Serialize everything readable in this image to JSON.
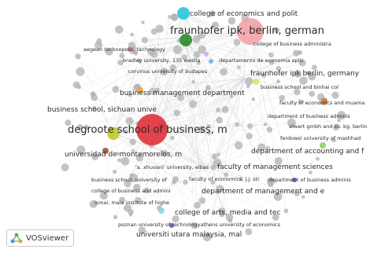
{
  "network": {
    "labels": [
      {
        "id": "college-economics-polit",
        "text": "college of economics and polit"
      },
      {
        "id": "fraunhofer-ipk-german",
        "text": "fraunhofer ipk, berlin, german"
      },
      {
        "id": "college-business-administra",
        "text": "college of business administra"
      },
      {
        "id": "aegean-technopolis",
        "text": "aegean technopolis, technology"
      },
      {
        "id": "bradley-university",
        "text": "bradley university, 135 westla"
      },
      {
        "id": "departamento-economia",
        "text": "departamento de economia aplic"
      },
      {
        "id": "corvinus-university",
        "text": "corvinus university of budapes"
      },
      {
        "id": "fraunhofer-ipk-germany",
        "text": "fraunhofer ipk berlin, germany"
      },
      {
        "id": "business-school-binhai",
        "text": "business school and binhai col"
      },
      {
        "id": "business-management-department",
        "text": "business management department"
      },
      {
        "id": "faculty-economics-muama",
        "text": "faculty of economics and muama"
      },
      {
        "id": "business-school-sichuan",
        "text": "business school, sichuan unive"
      },
      {
        "id": "department-business-adminis",
        "text": "department of business adminis"
      },
      {
        "id": "alwert-gmbh",
        "text": "alwert gmbh and co. kg, berlin"
      },
      {
        "id": "degroote-school",
        "text": "degroote school of business, m"
      },
      {
        "id": "ferdowsi-university",
        "text": "ferdowsi university of mashhad"
      },
      {
        "id": "department-accounting",
        "text": "department of accounting and f"
      },
      {
        "id": "universidad-montemorelos",
        "text": "universidad de montemorelos, m"
      },
      {
        "id": "xhuvani-university",
        "text": "'a. xhuvani' university, elbas"
      },
      {
        "id": "faculty-management-sciences",
        "text": "faculty of management sciences"
      },
      {
        "id": "business-school-university",
        "text": "business school, university of"
      },
      {
        "id": "faculty-economics-jj-str",
        "text": "faculty of economics, j.j. str"
      },
      {
        "id": "department-business-adminis-2",
        "text": "department of business adminis"
      },
      {
        "id": "college-business-admini",
        "text": "college of business and admini"
      },
      {
        "id": "department-management",
        "text": "department of management and e"
      },
      {
        "id": "ismai-maia",
        "text": "ismai, maia institute of highe"
      },
      {
        "id": "college-arts-media",
        "text": "college of arts, media and tec"
      },
      {
        "id": "poznan-university",
        "text": "poznan university of technologyathens university of economics"
      },
      {
        "id": "universiti-utara-malaysia",
        "text": "universiti utara malaysia, mal"
      }
    ],
    "clusters": [
      {
        "id": "college-economics-polit",
        "color": "#26c6da"
      },
      {
        "id": "fraunhofer-ipk-german",
        "color": "#f4a3a6"
      },
      {
        "id": "fraunhofer-ipk-german-green",
        "color": "#2e8b2e"
      },
      {
        "id": "aegean-technopolis",
        "color": "#e07fc8"
      },
      {
        "id": "bradley-university",
        "color": "#d9a6f5"
      },
      {
        "id": "departamento-economia",
        "color": "#7da9f0"
      },
      {
        "id": "business-school-binhai",
        "color": "#e5e05a"
      },
      {
        "id": "business-management-department",
        "color": "#f0a040"
      },
      {
        "id": "faculty-economics-muama",
        "color": "#e07820"
      },
      {
        "id": "degroote-school",
        "color": "#e0303a"
      },
      {
        "id": "degroote-school-yellow",
        "color": "#c4c82a"
      },
      {
        "id": "ferdowsi-university",
        "color": "#8bd06a"
      },
      {
        "id": "universidad-montemorelos",
        "color": "#a0522d"
      },
      {
        "id": "college-arts-media",
        "color": "#8fd0e0"
      },
      {
        "id": "poznan-university",
        "color": "#7a4fb0"
      },
      {
        "id": "department-business-adminis-2",
        "color": "#7a4fb0"
      },
      {
        "id": "other",
        "color": "#b0b0b0"
      }
    ]
  },
  "badge": {
    "label": "VOSviewer"
  }
}
